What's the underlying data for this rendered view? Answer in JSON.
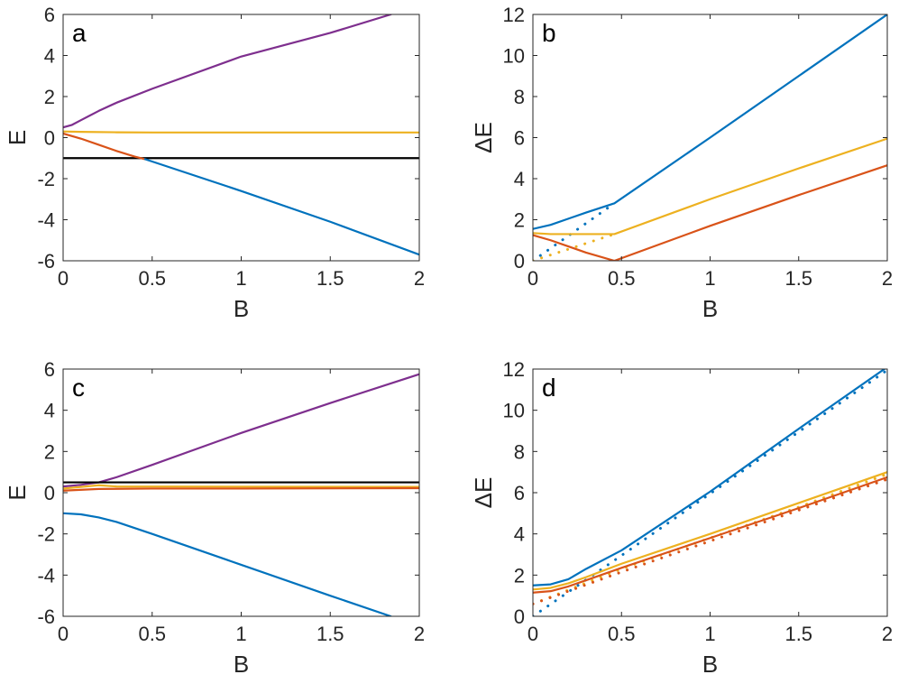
{
  "colors": {
    "blue": "#0072BD",
    "red": "#D95319",
    "yellow": "#EDB120",
    "purple": "#7E2F8E",
    "black": "#000000",
    "axis": "#262626"
  },
  "chart_data": [
    {
      "type": "line",
      "panel_label": "a",
      "xlabel": "B",
      "ylabel": "E",
      "xlim": [
        0,
        2
      ],
      "ylim": [
        -6,
        6
      ],
      "x_ticks": [
        0,
        0.5,
        1,
        1.5,
        2
      ],
      "x_tick_labels": [
        "0",
        "0.5",
        "1",
        "1.5",
        "2"
      ],
      "y_ticks": [
        -6,
        -4,
        -2,
        0,
        2,
        4,
        6
      ],
      "y_tick_labels": [
        "-6",
        "-4",
        "-2",
        "0",
        "2",
        "4",
        "6"
      ],
      "series": [
        {
          "name": "purple",
          "color": "purple",
          "style": "solid",
          "x": [
            0,
            0.05,
            0.1,
            0.2,
            0.3,
            0.5,
            1.0,
            1.5,
            1.84
          ],
          "y": [
            0.5,
            0.62,
            0.85,
            1.3,
            1.7,
            2.38,
            3.95,
            5.1,
            6.0
          ]
        },
        {
          "name": "yellow",
          "color": "yellow",
          "style": "solid",
          "x": [
            0,
            0.1,
            0.3,
            0.5,
            2.0
          ],
          "y": [
            0.3,
            0.28,
            0.26,
            0.25,
            0.25
          ]
        },
        {
          "name": "black",
          "color": "black",
          "style": "solid",
          "x": [
            0,
            2.0
          ],
          "y": [
            -1.0,
            -1.0
          ]
        },
        {
          "name": "red",
          "color": "red",
          "style": "solid",
          "x": [
            0,
            0.1,
            0.2,
            0.3,
            0.4,
            0.46
          ],
          "y": [
            0.2,
            -0.05,
            -0.35,
            -0.65,
            -0.92,
            -1.05
          ]
        },
        {
          "name": "blue",
          "color": "blue",
          "style": "solid",
          "x": [
            0.46,
            1.0,
            1.5,
            2.0
          ],
          "y": [
            -1.05,
            -2.6,
            -4.1,
            -5.7
          ]
        }
      ]
    },
    {
      "type": "line",
      "panel_label": "b",
      "xlabel": "B",
      "ylabel": "ΔE",
      "xlim": [
        0,
        2
      ],
      "ylim": [
        0,
        12
      ],
      "x_ticks": [
        0,
        0.5,
        1,
        1.5,
        2
      ],
      "x_tick_labels": [
        "0",
        "0.5",
        "1",
        "1.5",
        "2"
      ],
      "y_ticks": [
        0,
        2,
        4,
        6,
        8,
        10,
        12
      ],
      "y_tick_labels": [
        "0",
        "2",
        "4",
        "6",
        "8",
        "10",
        "12"
      ],
      "series": [
        {
          "name": "blue",
          "color": "blue",
          "style": "solid",
          "x": [
            0,
            0.1,
            0.2,
            0.3,
            0.46,
            1.0,
            1.5,
            2.0
          ],
          "y": [
            1.55,
            1.75,
            2.05,
            2.35,
            2.8,
            6.0,
            9.0,
            12.0
          ]
        },
        {
          "name": "blue-dotted",
          "color": "blue",
          "style": "dotted",
          "x": [
            0,
            0.46
          ],
          "y": [
            0.0,
            2.8
          ]
        },
        {
          "name": "yellow",
          "color": "yellow",
          "style": "solid",
          "x": [
            0,
            0.1,
            0.46,
            1.0,
            1.5,
            2.0
          ],
          "y": [
            1.35,
            1.3,
            1.3,
            3.0,
            4.5,
            5.95
          ]
        },
        {
          "name": "yellow-dotted",
          "color": "yellow",
          "style": "dotted",
          "x": [
            0,
            0.46
          ],
          "y": [
            0.0,
            1.3
          ]
        },
        {
          "name": "red",
          "color": "red",
          "style": "solid",
          "x": [
            0,
            0.1,
            0.2,
            0.3,
            0.46,
            1.0,
            1.5,
            2.0
          ],
          "y": [
            1.25,
            1.0,
            0.7,
            0.4,
            0.0,
            1.7,
            3.2,
            4.65
          ]
        }
      ]
    },
    {
      "type": "line",
      "panel_label": "c",
      "xlabel": "B",
      "ylabel": "E",
      "xlim": [
        0,
        2
      ],
      "ylim": [
        -6,
        6
      ],
      "x_ticks": [
        0,
        0.5,
        1,
        1.5,
        2
      ],
      "x_tick_labels": [
        "0",
        "0.5",
        "1",
        "1.5",
        "2"
      ],
      "y_ticks": [
        -6,
        -4,
        -2,
        0,
        2,
        4,
        6
      ],
      "y_tick_labels": [
        "-6",
        "-4",
        "-2",
        "0",
        "2",
        "4",
        "6"
      ],
      "series": [
        {
          "name": "purple",
          "color": "purple",
          "style": "solid",
          "x": [
            0,
            0.1,
            0.2,
            0.3,
            0.5,
            1.0,
            1.5,
            2.0
          ],
          "y": [
            0.3,
            0.38,
            0.5,
            0.75,
            1.35,
            2.9,
            4.35,
            5.75
          ]
        },
        {
          "name": "black",
          "color": "black",
          "style": "solid",
          "x": [
            0,
            2.0
          ],
          "y": [
            0.5,
            0.5
          ]
        },
        {
          "name": "yellow",
          "color": "yellow",
          "style": "solid",
          "x": [
            0,
            0.1,
            0.2,
            0.3,
            2.0
          ],
          "y": [
            0.2,
            0.28,
            0.36,
            0.3,
            0.28
          ]
        },
        {
          "name": "red",
          "color": "red",
          "style": "solid",
          "x": [
            0,
            0.2,
            0.5,
            1.0,
            2.0
          ],
          "y": [
            0.1,
            0.18,
            0.2,
            0.2,
            0.22
          ]
        },
        {
          "name": "blue",
          "color": "blue",
          "style": "solid",
          "x": [
            0,
            0.1,
            0.2,
            0.3,
            0.5,
            1.0,
            1.5,
            1.84
          ],
          "y": [
            -1.0,
            -1.05,
            -1.2,
            -1.42,
            -2.0,
            -3.5,
            -5.0,
            -6.0
          ]
        }
      ]
    },
    {
      "type": "line",
      "panel_label": "d",
      "xlabel": "B",
      "ylabel": "ΔE",
      "xlim": [
        0,
        2
      ],
      "ylim": [
        0,
        12
      ],
      "x_ticks": [
        0,
        0.5,
        1,
        1.5,
        2
      ],
      "x_tick_labels": [
        "0",
        "0.5",
        "1",
        "1.5",
        "2"
      ],
      "y_ticks": [
        0,
        2,
        4,
        6,
        8,
        10,
        12
      ],
      "y_tick_labels": [
        "0",
        "2",
        "4",
        "6",
        "8",
        "10",
        "12"
      ],
      "series": [
        {
          "name": "blue",
          "color": "blue",
          "style": "solid",
          "x": [
            0,
            0.1,
            0.2,
            0.3,
            0.5,
            1.0,
            1.5,
            2.0
          ],
          "y": [
            1.5,
            1.55,
            1.8,
            2.3,
            3.2,
            6.05,
            9.1,
            12.1
          ]
        },
        {
          "name": "blue-dotted",
          "color": "blue",
          "style": "dotted",
          "x": [
            0,
            0.5,
            1.0,
            1.5,
            2.0
          ],
          "y": [
            0.0,
            2.95,
            5.95,
            8.95,
            11.95
          ]
        },
        {
          "name": "yellow",
          "color": "yellow",
          "style": "solid",
          "x": [
            0,
            0.1,
            0.2,
            0.3,
            0.5,
            1.0,
            1.5,
            2.0
          ],
          "y": [
            1.3,
            1.38,
            1.6,
            1.9,
            2.55,
            4.0,
            5.5,
            7.0
          ]
        },
        {
          "name": "yellow-dotted",
          "color": "yellow",
          "style": "dotted",
          "x": [
            0,
            0.5,
            1.0,
            1.5,
            2.0
          ],
          "y": [
            0.6,
            2.3,
            3.8,
            5.3,
            6.9
          ]
        },
        {
          "name": "red",
          "color": "red",
          "style": "solid",
          "x": [
            0,
            0.1,
            0.2,
            0.3,
            0.5,
            1.0,
            1.5,
            2.0
          ],
          "y": [
            1.15,
            1.22,
            1.45,
            1.75,
            2.35,
            3.8,
            5.25,
            6.75
          ]
        },
        {
          "name": "red-dotted",
          "color": "red",
          "style": "dotted",
          "x": [
            0,
            0.5,
            1.0,
            1.5,
            2.0
          ],
          "y": [
            0.6,
            2.15,
            3.65,
            5.15,
            6.65
          ]
        }
      ]
    }
  ]
}
